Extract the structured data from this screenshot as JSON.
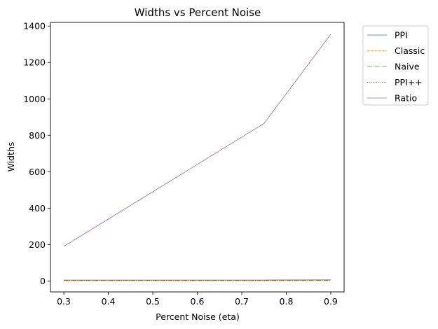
{
  "chart_data": {
    "type": "line",
    "title": "Widths vs Percent Noise",
    "xlabel": "Percent Noise (eta)",
    "ylabel": "Widths",
    "xlim": [
      0.27,
      0.93
    ],
    "ylim": [
      -60,
      1420
    ],
    "xticks": [
      0.3,
      0.4,
      0.5,
      0.6,
      0.7,
      0.8,
      0.9
    ],
    "xtick_labels": [
      "0.3",
      "0.4",
      "0.5",
      "0.6",
      "0.7",
      "0.8",
      "0.9"
    ],
    "yticks": [
      0,
      200,
      400,
      600,
      800,
      1000,
      1200,
      1400
    ],
    "ytick_labels": [
      "0",
      "200",
      "400",
      "600",
      "800",
      "1000",
      "1200",
      "1400"
    ],
    "grid": false,
    "legend_position": "outside-top-right",
    "x": [
      0.3,
      0.75,
      0.9
    ],
    "series": [
      {
        "name": "PPI",
        "values": [
          5,
          5,
          6
        ],
        "color": "#1f77b4",
        "dash": "solid"
      },
      {
        "name": "Classic",
        "values": [
          4,
          4,
          5
        ],
        "color": "#ff7f0e",
        "dash": "dashed"
      },
      {
        "name": "Naive",
        "values": [
          2,
          2,
          2
        ],
        "color": "#2ca02c",
        "dash": "dashdot"
      },
      {
        "name": "PPI++",
        "values": [
          4,
          4,
          5
        ],
        "color": "#d62728",
        "dash": "dotted"
      },
      {
        "name": "Ratio",
        "values": [
          190,
          865,
          1355
        ],
        "color": "#9467bd",
        "dash": "solid"
      }
    ]
  }
}
